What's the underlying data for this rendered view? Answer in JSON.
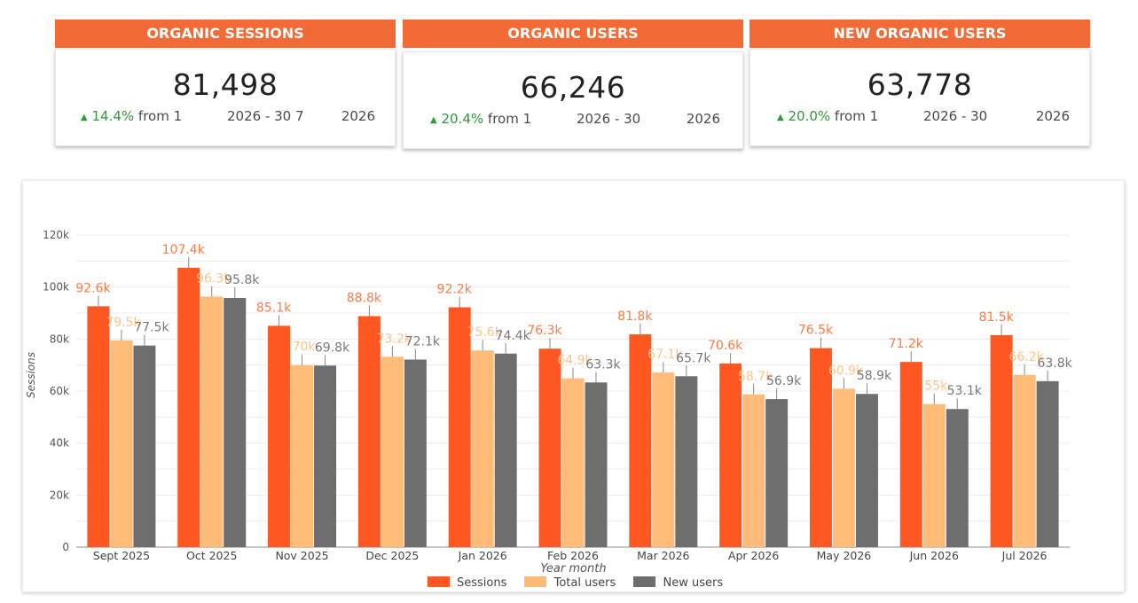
{
  "kpis": [
    {
      "title": "ORGANIC SESSIONS",
      "value": "81,498",
      "delta": "14.4%",
      "from_text": "from 1",
      "range_text": "2026 - 30 7",
      "year_text": "2026"
    },
    {
      "title": "ORGANIC USERS",
      "value": "66,246",
      "delta": "20.4%",
      "from_text": "from 1",
      "range_text": "2026 - 30",
      "year_text": "2026"
    },
    {
      "title": "NEW ORGANIC USERS",
      "value": "63,778",
      "delta": "20.0%",
      "from_text": "from 1",
      "range_text": "2026 - 30",
      "year_text": "2026"
    }
  ],
  "colors": {
    "header": "#f26a35",
    "sessions": "#ff5722",
    "total_users": "#ffbb77",
    "new_users": "#6e6e6e",
    "delta_up": "#2e9a3c",
    "arrow_icon": "up-arrow-icon"
  },
  "chart_data": {
    "type": "bar",
    "xlabel": "Year month",
    "ylabel": "Sessions",
    "ylim": [
      0,
      120000
    ],
    "yticks": [
      "0",
      "20k",
      "40k",
      "60k",
      "80k",
      "100k",
      "120k"
    ],
    "grid": true,
    "legend_position": "bottom",
    "categories": [
      "Sept 2025",
      "Oct 2025",
      "Nov 2025",
      "Dec 2025",
      "Jan 2026",
      "Feb 2026",
      "Mar 2026",
      "Apr 2026",
      "May 2026",
      "Jun 2026",
      "Jul 2026"
    ],
    "series": [
      {
        "name": "Sessions",
        "color": "#ff5722",
        "label_color": "#ff7a45",
        "values": [
          92600,
          107400,
          85100,
          88800,
          92200,
          76300,
          81800,
          70600,
          76500,
          71200,
          81500
        ],
        "labels": [
          "92.6k",
          "107.4k",
          "85.1k",
          "88.8k",
          "92.2k",
          "76.3k",
          "81.8k",
          "70.6k",
          "76.5k",
          "71.2k",
          "81.5k"
        ]
      },
      {
        "name": "Total users",
        "color": "#ffbb77",
        "label_color": "#ffc48a",
        "values": [
          79500,
          96300,
          70000,
          73200,
          75600,
          64900,
          67100,
          58700,
          60900,
          55000,
          66200
        ],
        "labels": [
          "79.5k",
          "96.3k",
          "70k",
          "73.2k",
          "75.6k",
          "64.9k",
          "67.1k",
          "58.7k",
          "60.9k",
          "55k",
          "66.2k"
        ]
      },
      {
        "name": "New users",
        "color": "#6e6e6e",
        "label_color": "#777777",
        "values": [
          77500,
          95800,
          69800,
          72100,
          74400,
          63300,
          65700,
          56900,
          58900,
          53100,
          63800
        ],
        "labels": [
          "77.5k",
          "95.8k",
          "69.8k",
          "72.1k",
          "74.4k",
          "63.3k",
          "65.7k",
          "56.9k",
          "58.9k",
          "53.1k",
          "63.8k"
        ]
      }
    ]
  }
}
